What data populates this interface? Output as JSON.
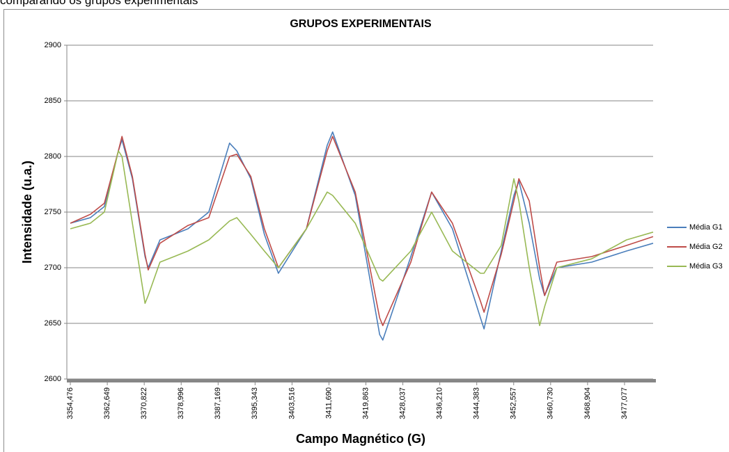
{
  "caption": "comparando os grupos experimentais",
  "chart_data": {
    "type": "line",
    "title": "GRUPOS EXPERIMENTAIS",
    "xlabel": "Campo Magnético (G)",
    "ylabel": "Intensidade (u.a.)",
    "x": [
      3354.476,
      3358.9,
      3362.0,
      3365.1,
      3365.9,
      3368.2,
      3371.0,
      3371.7,
      3374.3,
      3380.5,
      3385.1,
      3389.7,
      3391.3,
      3394.4,
      3397.4,
      3400.5,
      3406.7,
      3411.3,
      3412.5,
      3417.5,
      3422.9,
      3423.6,
      3429.8,
      3434.4,
      3439.0,
      3445.2,
      3446.0,
      3449.8,
      3452.6,
      3453.7,
      3456.0,
      3458.3,
      3459.4,
      3462.1,
      3469.8,
      3477.5,
      3483.4
    ],
    "series": [
      {
        "name": "Média G1",
        "color": "#4a7ebb",
        "values": [
          2740,
          2745,
          2755,
          2805,
          2815,
          2780,
          2710,
          2700,
          2725,
          2735,
          2750,
          2812,
          2805,
          2780,
          2730,
          2695,
          2735,
          2810,
          2822,
          2765,
          2640,
          2635,
          2710,
          2768,
          2735,
          2655,
          2645,
          2715,
          2765,
          2778,
          2740,
          2690,
          2675,
          2700,
          2705,
          2715,
          2722
        ]
      },
      {
        "name": "Média G2",
        "color": "#be4b48",
        "values": [
          2740,
          2748,
          2758,
          2805,
          2818,
          2782,
          2712,
          2698,
          2722,
          2738,
          2745,
          2800,
          2802,
          2782,
          2735,
          2700,
          2735,
          2805,
          2818,
          2768,
          2655,
          2648,
          2705,
          2768,
          2740,
          2670,
          2660,
          2712,
          2760,
          2780,
          2760,
          2700,
          2675,
          2705,
          2710,
          2720,
          2728
        ]
      },
      {
        "name": "Média G3",
        "color": "#98b954",
        "values": [
          2735,
          2740,
          2750,
          2805,
          2800,
          2740,
          2668,
          2675,
          2705,
          2715,
          2725,
          2742,
          2745,
          2730,
          2715,
          2700,
          2735,
          2768,
          2765,
          2740,
          2690,
          2688,
          2715,
          2750,
          2715,
          2695,
          2695,
          2720,
          2780,
          2760,
          2700,
          2648,
          2665,
          2700,
          2708,
          2725,
          2732
        ]
      }
    ],
    "xlim": [
      3353.7,
      3483.4
    ],
    "xticks": [
      {
        "value": 3354.476,
        "label": "3354,476"
      },
      {
        "value": 3362.649,
        "label": "3362,649"
      },
      {
        "value": 3370.822,
        "label": "3370,822"
      },
      {
        "value": 3378.996,
        "label": "3378,996"
      },
      {
        "value": 3387.169,
        "label": "3387,169"
      },
      {
        "value": 3395.343,
        "label": "3395,343"
      },
      {
        "value": 3403.516,
        "label": "3403,516"
      },
      {
        "value": 3411.69,
        "label": "3411,690"
      },
      {
        "value": 3419.863,
        "label": "3419,863"
      },
      {
        "value": 3428.037,
        "label": "3428,037"
      },
      {
        "value": 3436.21,
        "label": "3436,210"
      },
      {
        "value": 3444.383,
        "label": "3444,383"
      },
      {
        "value": 3452.557,
        "label": "3452,557"
      },
      {
        "value": 3460.73,
        "label": "3460,730"
      },
      {
        "value": 3468.904,
        "label": "3468,904"
      },
      {
        "value": 3477.077,
        "label": "3477,077"
      }
    ],
    "ylim": [
      2600,
      2900
    ],
    "yticks": [
      2600,
      2650,
      2700,
      2750,
      2800,
      2850,
      2900
    ],
    "grid": true,
    "legend": "right"
  }
}
